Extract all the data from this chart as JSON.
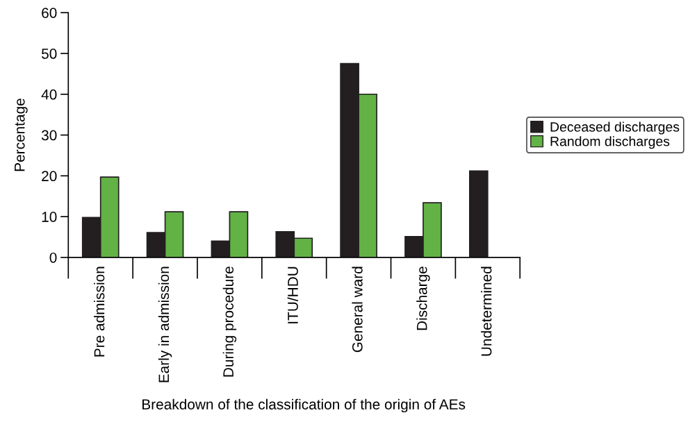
{
  "chart_data": {
    "type": "bar",
    "xlabel": "Breakdown of the classification of the origin of AEs",
    "ylabel": "Percentage",
    "categories": [
      "Pre admission",
      "Early in admission",
      "During procedure",
      "ITU/HDU",
      "General ward",
      "Discharge",
      "Undetermined"
    ],
    "series": [
      {
        "name": "Deceased discharges",
        "color": "#231f20",
        "values": [
          9.8,
          6.1,
          4.0,
          6.3,
          47.5,
          5.1,
          21.2
        ]
      },
      {
        "name": "Random discharges",
        "color": "#62b246",
        "values": [
          19.7,
          11.2,
          11.2,
          4.7,
          40.0,
          13.4,
          null
        ]
      }
    ],
    "ylim": [
      0,
      60
    ],
    "yticks": [
      0,
      10,
      20,
      30,
      40,
      50,
      60
    ],
    "grid": false,
    "legend": "right"
  }
}
